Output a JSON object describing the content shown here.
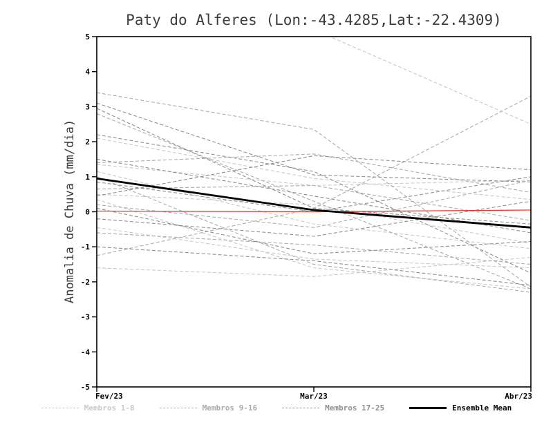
{
  "chart_data": {
    "type": "line",
    "title": "Paty do Alferes (Lon:-43.4285,Lat:-22.4309)",
    "ylabel": "Anomalia de Chuva (mm/dia)",
    "x_tick_labels": [
      "Fev/23",
      "Mar/23",
      "Abr/23"
    ],
    "ylim": [
      -5,
      5
    ],
    "y_tick_step": 1,
    "grid": false,
    "legend_position": "bottom",
    "member_groups": [
      {
        "label": "Membros 1-8",
        "color": "#c9c9c9",
        "members": [
          [
            1.35,
            0.75,
            0.9
          ],
          [
            1.15,
            -0.35,
            -1.05
          ],
          [
            0.35,
            -1.6,
            -2.2
          ],
          [
            -0.45,
            -1.35,
            -1.6
          ],
          [
            -1.6,
            -1.85,
            -1.3
          ],
          [
            2.1,
            0.95,
            0.35
          ],
          [
            0.5,
            0.2,
            -0.9
          ],
          [
            5.6,
            5.2,
            2.5
          ]
        ]
      },
      {
        "label": "Membros 9-16",
        "color": "#ababab",
        "members": [
          [
            3.4,
            2.35,
            -2.15
          ],
          [
            2.8,
            0.3,
            -2.2
          ],
          [
            1.4,
            1.65,
            0.55
          ],
          [
            0.65,
            0.75,
            -0.25
          ],
          [
            -0.6,
            -0.95,
            -1.5
          ],
          [
            -1.25,
            0.1,
            3.3
          ],
          [
            0.2,
            -0.45,
            0.9
          ],
          [
            1.0,
            -1.5,
            -2.3
          ]
        ]
      },
      {
        "label": "Membros 17-25",
        "color": "#8f8f8f",
        "members": [
          [
            3.1,
            1.05,
            0.85
          ],
          [
            2.2,
            1.15,
            -1.75
          ],
          [
            0.85,
            0.0,
            1.0
          ],
          [
            -0.2,
            -0.7,
            0.3
          ],
          [
            1.5,
            0.45,
            -0.6
          ],
          [
            -1.0,
            -1.4,
            -2.1
          ],
          [
            0.45,
            1.6,
            1.2
          ],
          [
            2.95,
            0.1,
            -0.35
          ],
          [
            0.1,
            -1.2,
            -0.85
          ]
        ]
      }
    ],
    "reference_line": {
      "name": "zero-reference",
      "color": "#e0392f",
      "values": [
        0.02,
        0.0,
        0.05
      ]
    },
    "ensemble_mean": {
      "label": "Ensemble Mean",
      "color": "#000000",
      "values": [
        0.95,
        0.05,
        -0.45
      ]
    }
  }
}
